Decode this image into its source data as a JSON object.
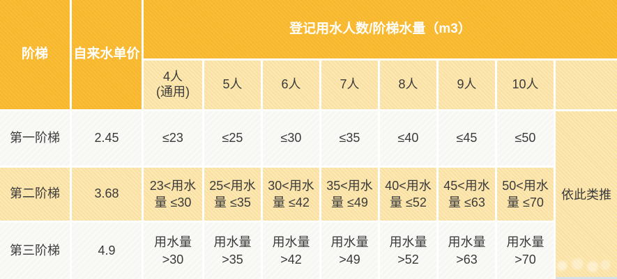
{
  "colors": {
    "header_orange": "#f9b92d",
    "light_yellow": "#fbe4a5",
    "row_white": "#f8f8f6",
    "header_text": "#ffffff",
    "body_text": "#3a3a3a"
  },
  "table": {
    "header": {
      "tier": "阶梯",
      "unit_price": "自来水单价",
      "group_title": "登记用水人数/阶梯水量（m3）",
      "person_cols": [
        "4人\n(通用)",
        "5人",
        "6人",
        "7人",
        "8人",
        "9人",
        "10人"
      ],
      "person_col_extra": ""
    },
    "rows": [
      {
        "tier": "第一阶梯",
        "price": "2.45",
        "values": [
          "≤23",
          "≤25",
          "≤30",
          "≤35",
          "≤40",
          "≤45",
          "≤50"
        ]
      },
      {
        "tier": "第二阶梯",
        "price": "3.68",
        "values": [
          "23<用水\n量 ≤30",
          "25<用水\n量 ≤35",
          "30<用水\n量 ≤42",
          "35<用水\n量 ≤49",
          "40<用水\n量 ≤52",
          "45<用水\n量 ≤63",
          "50<用水\n量 ≤70"
        ]
      },
      {
        "tier": "第三阶梯",
        "price": "4.9",
        "values": [
          "用水量\n>30",
          "用水量\n>35",
          "用水量\n>42",
          "用水量\n>49",
          "用水量\n>52",
          "用水量\n>63",
          "用水量\n>70"
        ]
      }
    ],
    "etc_cell": "依此类推"
  }
}
